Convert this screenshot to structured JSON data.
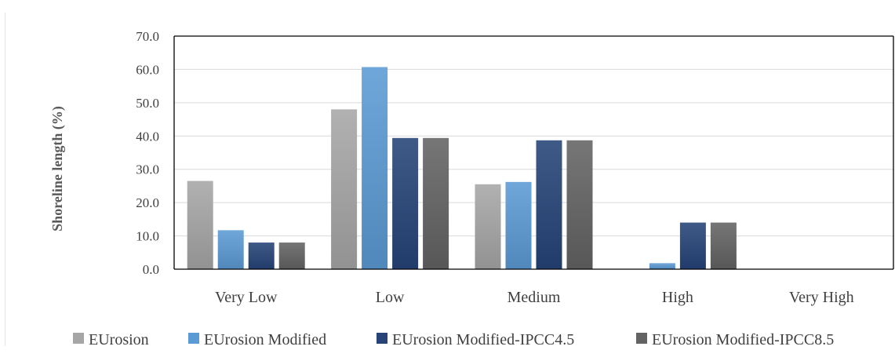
{
  "chart_data": {
    "type": "bar",
    "title": "",
    "xlabel": "",
    "ylabel": "Shoreline length (%)",
    "ylim": [
      0,
      70
    ],
    "y_ticks": [
      "0.0",
      "10.0",
      "20.0",
      "30.0",
      "40.0",
      "50.0",
      "60.0",
      "70.0"
    ],
    "grid": true,
    "legend_position": "bottom",
    "categories": [
      "Very Low",
      "Low",
      "Medium",
      "High",
      "Very High"
    ],
    "series": [
      {
        "name": "EUrosion",
        "color": "#a6a6a6",
        "values": [
          26.5,
          48.0,
          25.5,
          0.0,
          0.0
        ]
      },
      {
        "name": "EUrosion Modified",
        "color": "#5b9bd5",
        "values": [
          11.7,
          60.7,
          26.2,
          1.8,
          0.0
        ]
      },
      {
        "name": "EUrosion Modified-IPCC4.5",
        "color": "#264478",
        "values": [
          8.0,
          39.4,
          38.7,
          14.0,
          0.0
        ]
      },
      {
        "name": "EUrosion Modified-IPCC8.5",
        "color": "#636363",
        "values": [
          8.0,
          39.4,
          38.7,
          14.0,
          0.0
        ]
      }
    ]
  }
}
